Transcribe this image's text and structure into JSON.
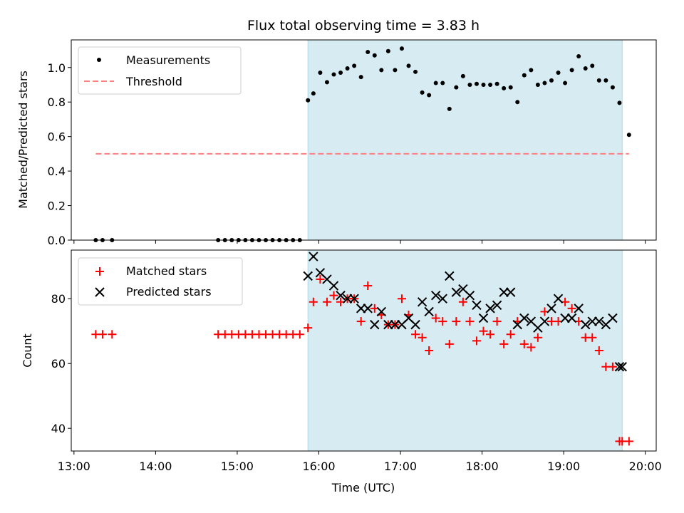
{
  "chart_data": [
    {
      "type": "scatter",
      "title": "Flux total observing time = 3.83 h",
      "xlabel": "",
      "ylabel": "Matched/Predicted stars",
      "ylim": [
        0,
        1.16
      ],
      "yticks": [
        0.0,
        0.2,
        0.4,
        0.6,
        0.8,
        1.0
      ],
      "ytick_labels": [
        "0.0",
        "0.2",
        "0.4",
        "0.6",
        "0.8",
        "1.0"
      ],
      "xlim": [
        "12:58",
        "20:08"
      ],
      "x_ticks_shown": false,
      "grid": false,
      "legend_position": "upper-left",
      "shaded_interval": {
        "start": "15:52",
        "end": "19:43",
        "color": "#add8e6"
      },
      "series": [
        {
          "name": "Measurements",
          "marker": "dot",
          "color": "#000000",
          "x": [
            "13:16",
            "13:21",
            "13:28",
            "14:46",
            "14:51",
            "14:56",
            "15:01",
            "15:06",
            "15:11",
            "15:16",
            "15:21",
            "15:26",
            "15:31",
            "15:36",
            "15:41",
            "15:46",
            "15:52",
            "15:56",
            "16:01",
            "16:06",
            "16:11",
            "16:16",
            "16:21",
            "16:26",
            "16:31",
            "16:36",
            "16:41",
            "16:46",
            "16:51",
            "16:56",
            "17:01",
            "17:06",
            "17:11",
            "17:16",
            "17:21",
            "17:26",
            "17:31",
            "17:36",
            "17:41",
            "17:46",
            "17:51",
            "17:56",
            "18:01",
            "18:06",
            "18:11",
            "18:16",
            "18:21",
            "18:26",
            "18:31",
            "18:36",
            "18:41",
            "18:46",
            "18:51",
            "18:56",
            "19:01",
            "19:06",
            "19:11",
            "19:16",
            "19:21",
            "19:26",
            "19:31",
            "19:36",
            "19:41",
            "19:48"
          ],
          "y": [
            0,
            0,
            0,
            0,
            0,
            0,
            0,
            0,
            0,
            0,
            0,
            0,
            0,
            0,
            0,
            0,
            0.81,
            0.85,
            0.97,
            0.915,
            0.96,
            0.97,
            0.995,
            1.01,
            0.945,
            1.09,
            1.07,
            0.985,
            1.095,
            0.985,
            1.11,
            1.01,
            0.975,
            0.855,
            0.84,
            0.91,
            0.91,
            0.76,
            0.885,
            0.95,
            0.9,
            0.905,
            0.9,
            0.9,
            0.905,
            0.88,
            0.885,
            0.8,
            0.955,
            0.985,
            0.9,
            0.91,
            0.925,
            0.97,
            0.91,
            0.985,
            1.065,
            0.995,
            1.01,
            0.925,
            0.925,
            0.885,
            0.795,
            0.61
          ]
        },
        {
          "name": "Threshold",
          "style": "dashed",
          "color": "#ff7f7f",
          "x": [
            "13:16",
            "19:48"
          ],
          "y": [
            0.5,
            0.5
          ]
        }
      ]
    },
    {
      "type": "scatter",
      "title": "",
      "xlabel": "Time (UTC)",
      "ylabel": "Count",
      "ylim": [
        33,
        95
      ],
      "yticks": [
        40,
        60,
        80
      ],
      "ytick_labels": [
        "40",
        "60",
        "80"
      ],
      "xlim": [
        "12:58",
        "20:08"
      ],
      "xticks": [
        "13:00",
        "14:00",
        "15:00",
        "16:00",
        "17:00",
        "18:00",
        "19:00",
        "20:00"
      ],
      "xtick_labels": [
        "13:00",
        "14:00",
        "15:00",
        "16:00",
        "17:00",
        "18:00",
        "19:00",
        "20:00"
      ],
      "grid": false,
      "legend_position": "upper-left",
      "shaded_interval": {
        "start": "15:52",
        "end": "19:43",
        "color": "#add8e6"
      },
      "series": [
        {
          "name": "Matched stars",
          "marker": "plus",
          "color": "#ff0000",
          "x": [
            "13:16",
            "13:21",
            "13:28",
            "14:46",
            "14:51",
            "14:56",
            "15:01",
            "15:06",
            "15:11",
            "15:16",
            "15:21",
            "15:26",
            "15:31",
            "15:36",
            "15:41",
            "15:46",
            "15:52",
            "15:56",
            "16:01",
            "16:06",
            "16:11",
            "16:16",
            "16:21",
            "16:26",
            "16:31",
            "16:36",
            "16:41",
            "16:46",
            "16:51",
            "16:56",
            "17:01",
            "17:06",
            "17:11",
            "17:16",
            "17:21",
            "17:26",
            "17:31",
            "17:36",
            "17:41",
            "17:46",
            "17:51",
            "17:56",
            "18:01",
            "18:06",
            "18:11",
            "18:16",
            "18:21",
            "18:26",
            "18:31",
            "18:36",
            "18:41",
            "18:46",
            "18:51",
            "18:56",
            "19:01",
            "19:06",
            "19:11",
            "19:16",
            "19:21",
            "19:26",
            "19:31",
            "19:36",
            "19:41",
            "19:43",
            "19:48"
          ],
          "y": [
            69,
            69,
            69,
            69,
            69,
            69,
            69,
            69,
            69,
            69,
            69,
            69,
            69,
            69,
            69,
            69,
            71,
            79,
            86,
            79,
            81,
            79,
            80,
            80,
            73,
            84,
            77,
            75,
            72,
            72,
            80,
            75,
            69,
            68,
            64,
            74,
            73,
            66,
            73,
            79,
            73,
            67,
            70,
            69,
            73,
            66,
            69,
            73,
            66,
            65,
            68,
            76,
            73,
            73,
            79,
            77,
            73,
            68,
            68,
            64,
            59,
            59,
            36,
            36,
            36
          ]
        },
        {
          "name": "Predicted stars",
          "marker": "x",
          "color": "#000000",
          "x": [
            "15:52",
            "15:56",
            "16:01",
            "16:06",
            "16:11",
            "16:16",
            "16:21",
            "16:26",
            "16:31",
            "16:36",
            "16:41",
            "16:46",
            "16:51",
            "16:56",
            "17:01",
            "17:06",
            "17:11",
            "17:16",
            "17:21",
            "17:26",
            "17:31",
            "17:36",
            "17:41",
            "17:46",
            "17:51",
            "17:56",
            "18:01",
            "18:06",
            "18:11",
            "18:16",
            "18:21",
            "18:26",
            "18:31",
            "18:36",
            "18:41",
            "18:46",
            "18:51",
            "18:56",
            "19:01",
            "19:06",
            "19:11",
            "19:16",
            "19:21",
            "19:26",
            "19:31",
            "19:36",
            "19:41",
            "19:43"
          ],
          "y": [
            87,
            93,
            88,
            86,
            84,
            81,
            80,
            80,
            77,
            77,
            72,
            76,
            72,
            72,
            72,
            74,
            72,
            79,
            76,
            81,
            80,
            87,
            82,
            83,
            81,
            78,
            74,
            77,
            78,
            82,
            82,
            72,
            74,
            73,
            71,
            73,
            77,
            80,
            74,
            74,
            77,
            72,
            73,
            73,
            72,
            74,
            59,
            59
          ]
        }
      ]
    }
  ]
}
